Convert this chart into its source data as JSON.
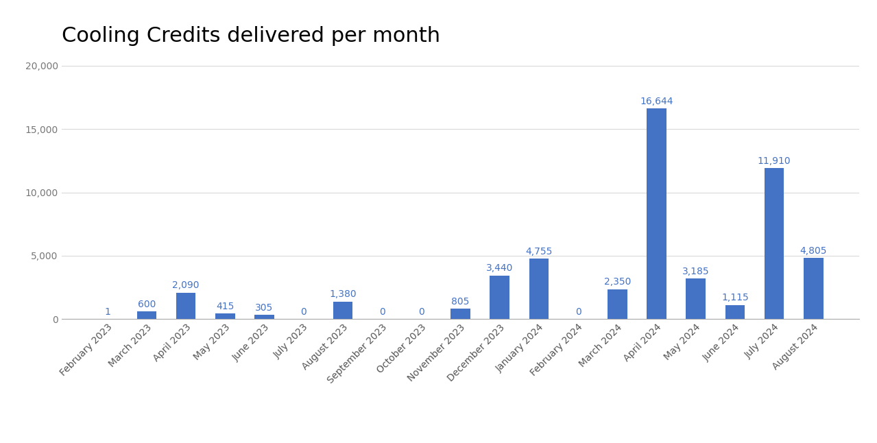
{
  "title": "Cooling Credits delivered per month",
  "categories": [
    "February 2023",
    "March 2023",
    "April 2023",
    "May 2023",
    "June 2023",
    "July 2023",
    "August 2023",
    "September 2023",
    "October 2023",
    "November 2023",
    "December 2023",
    "January 2024",
    "February 2024",
    "March 2024",
    "April 2024",
    "May 2024",
    "June 2024",
    "July 2024",
    "August 2024"
  ],
  "values": [
    1,
    600,
    2090,
    415,
    305,
    0,
    1380,
    0,
    0,
    805,
    3440,
    4755,
    0,
    2350,
    16644,
    3185,
    1115,
    11910,
    4805
  ],
  "bar_color": "#4472c4",
  "background_color": "#ffffff",
  "ylim": [
    0,
    21000
  ],
  "yticks": [
    0,
    5000,
    10000,
    15000,
    20000
  ],
  "title_fontsize": 22,
  "tick_fontsize": 10,
  "value_label_fontsize": 10,
  "grid_color": "#d9d9d9",
  "bar_width": 0.5
}
